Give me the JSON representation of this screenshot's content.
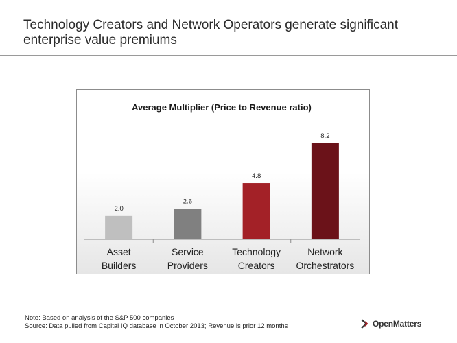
{
  "slide": {
    "title_line1": "Technology Creators and Network Operators generate significant",
    "title_line2": "enterprise value premiums"
  },
  "footer": {
    "note": "Note: Based on analysis of the S&P 500 companies",
    "source": "Source: Data pulled from Capital IQ database in October 2013; Revenue is prior 12 months",
    "logo_text": "OpenMatters",
    "logo_icon": "chevron-arrow-icon"
  },
  "chart_data": {
    "type": "bar",
    "title": "Average Multiplier (Price to Revenue ratio)",
    "categories": [
      [
        "Asset",
        "Builders"
      ],
      [
        "Service",
        "Providers"
      ],
      [
        "Technology",
        "Creators"
      ],
      [
        "Network",
        "Orchestrators"
      ]
    ],
    "values": [
      2.0,
      2.6,
      4.8,
      8.2
    ],
    "value_labels": [
      "2.0",
      "2.6",
      "4.8",
      "8.2"
    ],
    "colors": [
      "#bfbfbf",
      "#808080",
      "#a32127",
      "#6b1219"
    ],
    "ylim": [
      0,
      8.2
    ],
    "grid": false,
    "legend": "none"
  }
}
